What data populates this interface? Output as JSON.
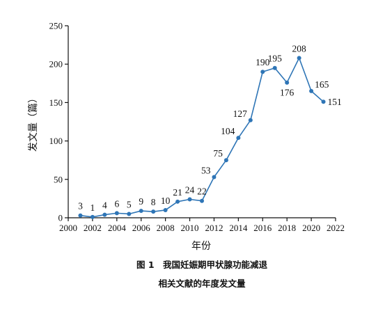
{
  "chart_data": {
    "type": "line",
    "x": [
      2001,
      2002,
      2003,
      2004,
      2005,
      2006,
      2007,
      2008,
      2009,
      2010,
      2011,
      2012,
      2013,
      2014,
      2015,
      2016,
      2017,
      2018,
      2019,
      2020,
      2021
    ],
    "series": [
      {
        "values": [
          3,
          1,
          4,
          6,
          5,
          9,
          8,
          10,
          21,
          24,
          22,
          53,
          75,
          104,
          127,
          190,
          195,
          176,
          208,
          165,
          151
        ]
      }
    ],
    "data_labels": [
      "3",
      "1",
      "4",
      "6",
      "5",
      "9",
      "8",
      "10",
      "21",
      "24",
      "22",
      "53",
      "75",
      "104",
      "127",
      "190",
      "195",
      "176",
      "208",
      "165",
      "151"
    ],
    "xlabel": "年份",
    "ylabel": "发文量（篇）",
    "xlim": [
      2000,
      2022
    ],
    "ylim": [
      0,
      250
    ],
    "x_ticks": [
      2000,
      2002,
      2004,
      2006,
      2008,
      2010,
      2012,
      2014,
      2016,
      2018,
      2020,
      2022
    ],
    "y_ticks": [
      0,
      50,
      100,
      150,
      200,
      250
    ],
    "grid": false,
    "legend": "none",
    "line_color": "#2e75b6",
    "marker_color": "#2e75b6"
  },
  "caption": {
    "line1": "图 1　我国妊娠期甲状腺功能减退",
    "line2": "相关文献的年度发文量"
  }
}
